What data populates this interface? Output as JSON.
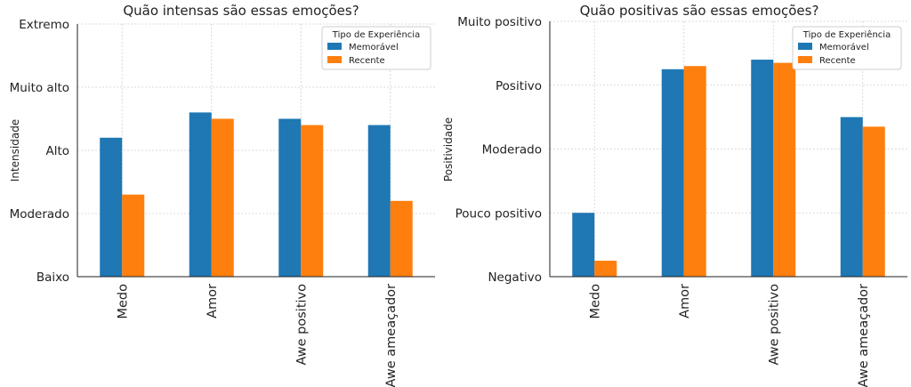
{
  "chart_data": [
    {
      "type": "bar",
      "title": "Quão intensas são essas emoções?",
      "xlabel": "",
      "ylabel": "Intensidade",
      "categories": [
        "Medo",
        "Amor",
        "Awe positivo",
        "Awe ameaçador"
      ],
      "y_tick_labels": [
        "Baixo",
        "Moderado",
        "Alto",
        "Muito alto",
        "Extremo"
      ],
      "ylim": [
        1,
        5
      ],
      "legend_title": "Tipo de Experiência",
      "legend_position": "top-right",
      "grid": true,
      "series": [
        {
          "name": "Memorável",
          "color": "#1f77b4",
          "values": [
            3.2,
            3.6,
            3.5,
            3.4
          ]
        },
        {
          "name": "Recente",
          "color": "#ff7f0e",
          "values": [
            2.3,
            3.5,
            3.4,
            2.2
          ]
        }
      ]
    },
    {
      "type": "bar",
      "title": "Quão positivas são essas emoções?",
      "xlabel": "",
      "ylabel": "Positividade",
      "categories": [
        "Medo",
        "Amor",
        "Awe positivo",
        "Awe ameaçador"
      ],
      "y_tick_labels": [
        "Negativo",
        "Pouco positivo",
        "Moderado",
        "Positivo",
        "Muito positivo"
      ],
      "ylim": [
        1,
        5
      ],
      "legend_title": "Tipo de Experiência",
      "legend_position": "top-right",
      "grid": true,
      "series": [
        {
          "name": "Memorável",
          "color": "#1f77b4",
          "values": [
            2.0,
            4.25,
            4.4,
            3.5
          ]
        },
        {
          "name": "Recente",
          "color": "#ff7f0e",
          "values": [
            1.25,
            4.3,
            4.35,
            3.35
          ]
        }
      ]
    }
  ]
}
